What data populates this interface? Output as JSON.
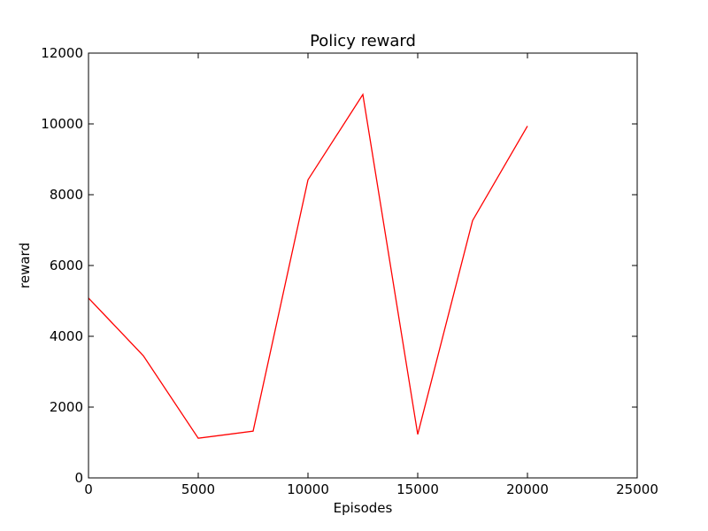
{
  "chart_data": {
    "type": "line",
    "title": "Policy reward",
    "xlabel": "Episodes",
    "ylabel": "reward",
    "xlim": [
      0,
      25000
    ],
    "ylim": [
      0,
      12000
    ],
    "xticks": [
      0,
      5000,
      10000,
      15000,
      20000,
      25000
    ],
    "yticks": [
      0,
      2000,
      4000,
      6000,
      8000,
      10000,
      12000
    ],
    "xtick_labels": [
      "0",
      "5000",
      "10000",
      "15000",
      "20000",
      "25000"
    ],
    "ytick_labels": [
      "0",
      "2000",
      "4000",
      "6000",
      "8000",
      "10000",
      "12000"
    ],
    "grid": false,
    "series": [
      {
        "color": "#ff0000",
        "x": [
          0,
          2500,
          5000,
          7500,
          10000,
          12500,
          15000,
          17500,
          20000
        ],
        "y": [
          5080,
          3450,
          1120,
          1320,
          8420,
          10830,
          1230,
          7270,
          9940
        ]
      }
    ]
  }
}
